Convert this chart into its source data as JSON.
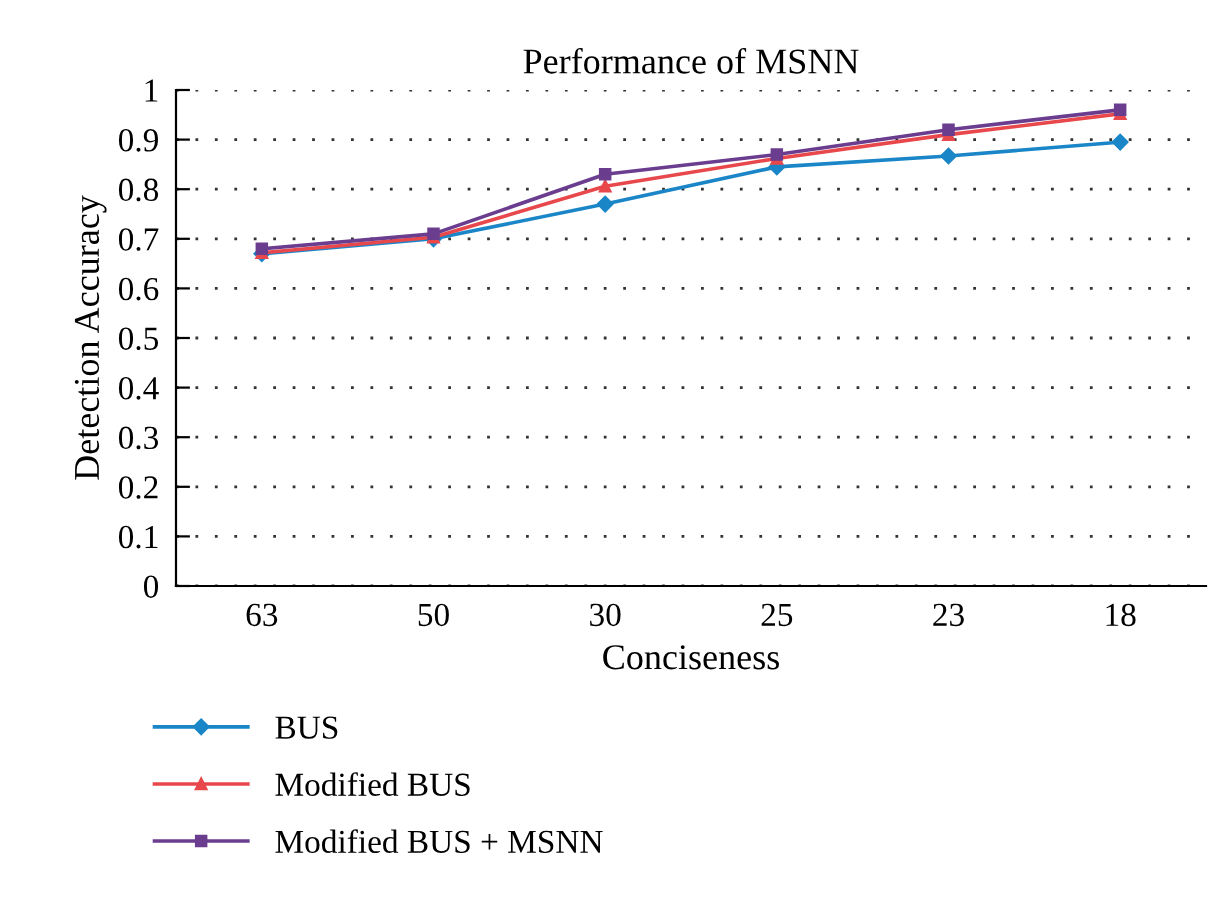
{
  "chart_data": {
    "type": "line",
    "title": "Performance of MSNN",
    "xlabel": "Conciseness",
    "ylabel": "Detection Accuracy",
    "categories": [
      "63",
      "50",
      "30",
      "25",
      "23",
      "18"
    ],
    "series": [
      {
        "name": "BUS",
        "color": "#1a86c8",
        "marker": "diamond",
        "values": [
          0.67,
          0.7,
          0.77,
          0.845,
          0.867,
          0.895
        ]
      },
      {
        "name": "Modified BUS",
        "color": "#e8484b",
        "marker": "triangle",
        "values": [
          0.672,
          0.703,
          0.806,
          0.862,
          0.91,
          0.952
        ]
      },
      {
        "name": "Modified BUS + MSNN",
        "color": "#6a3d8f",
        "marker": "square",
        "values": [
          0.68,
          0.71,
          0.83,
          0.87,
          0.92,
          0.96
        ]
      }
    ],
    "ylim": [
      0,
      1
    ],
    "yticks": [
      0,
      0.1,
      0.2,
      0.3,
      0.4,
      0.5,
      0.6,
      0.7,
      0.8,
      0.9,
      1
    ],
    "grid": "y",
    "legend": "bottom",
    "line_style": "solid"
  }
}
